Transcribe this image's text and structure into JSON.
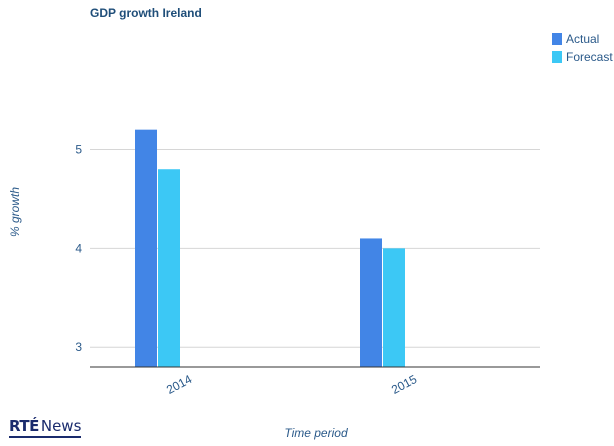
{
  "chart_data": {
    "type": "bar",
    "title": "GDP growth Ireland",
    "xlabel": "Time period",
    "ylabel": "% growth",
    "categories": [
      "2014",
      "2015"
    ],
    "series": [
      {
        "name": "Actual",
        "values": [
          5.2,
          4.1
        ],
        "color": "#4285e6"
      },
      {
        "name": "Forecast",
        "values": [
          4.8,
          4.0
        ],
        "color": "#3cc8f5"
      }
    ],
    "ylim": [
      2.8,
      5.5
    ],
    "yticks": [
      3,
      4,
      5
    ],
    "grid": true,
    "legend_position": "top-right"
  },
  "branding": {
    "logo_rte": "RTÉ",
    "logo_news": "News"
  }
}
